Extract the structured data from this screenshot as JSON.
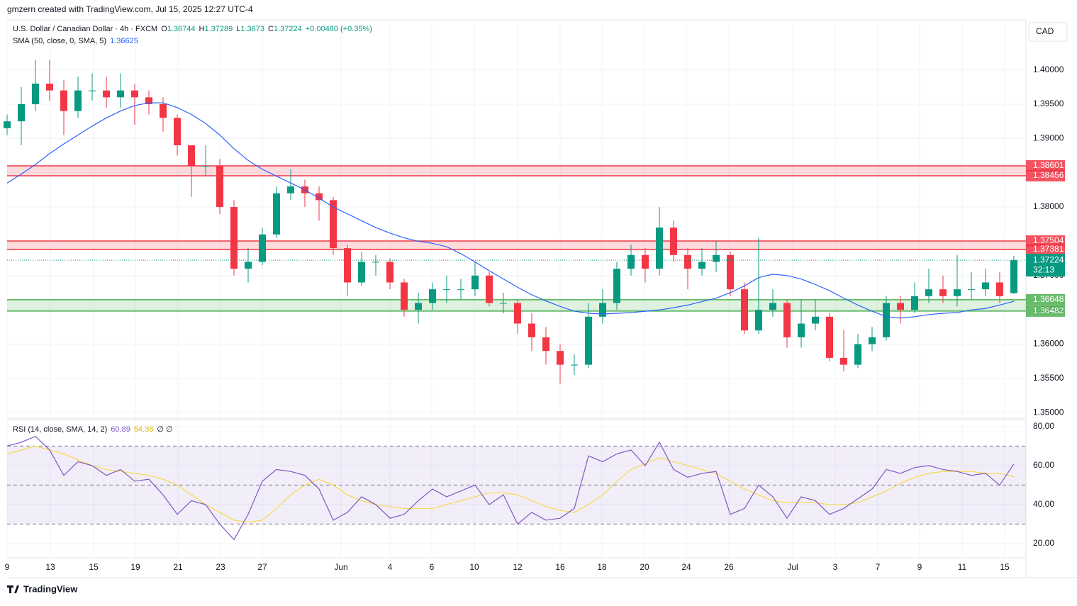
{
  "header": {
    "credit": "gmzern created with TradingView.com, Jul 15, 2025 12:27 UTC-4",
    "brand": "TradingView"
  },
  "chart_data": {
    "type": "candlestick",
    "symbol": "U.S. Dollar / Canadian Dollar · 4h · FXCM",
    "quote_labels": [
      "O",
      "H",
      "L",
      "C"
    ],
    "change": "+0.00480 (+0.35%)",
    "currency": "CAD",
    "up_color": "#089981",
    "down_color": "#f23645",
    "xlim": [
      0,
      71.85
    ],
    "xticks": [
      {
        "value": 0,
        "label": "9"
      },
      {
        "value": 3.05,
        "label": "13"
      },
      {
        "value": 6.1,
        "label": "15"
      },
      {
        "value": 9.05,
        "label": "19"
      },
      {
        "value": 12.05,
        "label": "21"
      },
      {
        "value": 15.05,
        "label": "23"
      },
      {
        "value": 18,
        "label": "27"
      },
      {
        "value": 23.55,
        "label": "Jun"
      },
      {
        "value": 27,
        "label": "4"
      },
      {
        "value": 29.95,
        "label": "6"
      },
      {
        "value": 32.95,
        "label": "10"
      },
      {
        "value": 36,
        "label": "12"
      },
      {
        "value": 39,
        "label": "16"
      },
      {
        "value": 41.95,
        "label": "18"
      },
      {
        "value": 44.95,
        "label": "20"
      },
      {
        "value": 47.9,
        "label": "24"
      },
      {
        "value": 50.9,
        "label": "26"
      },
      {
        "value": 55.4,
        "label": "Jul"
      },
      {
        "value": 58.4,
        "label": "3"
      },
      {
        "value": 61.4,
        "label": "7"
      },
      {
        "value": 64.35,
        "label": "9"
      },
      {
        "value": 67.35,
        "label": "11"
      },
      {
        "value": 70.35,
        "label": "15"
      }
    ],
    "ylim": [
      1.3492,
      1.4073
    ],
    "yticks": [
      {
        "value": 1.35,
        "label": "1.35000"
      },
      {
        "value": 1.355,
        "label": "1.35500"
      },
      {
        "value": 1.36,
        "label": "1.36000"
      },
      {
        "value": 1.365,
        "label": "1.36500"
      },
      {
        "value": 1.37,
        "label": "1.37000"
      },
      {
        "value": 1.375,
        "label": "1.37500"
      },
      {
        "value": 1.38,
        "label": "1.38000"
      },
      {
        "value": 1.385,
        "label": "1.38500"
      },
      {
        "value": 1.39,
        "label": "1.39000"
      },
      {
        "value": 1.395,
        "label": "1.39500"
      },
      {
        "value": 1.4,
        "label": "1.40000"
      }
    ],
    "candles": [
      [
        1.3915,
        1.3935,
        1.3905,
        1.3925
      ],
      [
        1.3925,
        1.3975,
        1.389,
        1.395
      ],
      [
        1.395,
        1.4015,
        1.394,
        1.398
      ],
      [
        1.398,
        1.4015,
        1.3955,
        1.397
      ],
      [
        1.397,
        1.3985,
        1.3905,
        1.394
      ],
      [
        1.394,
        1.399,
        1.393,
        1.397
      ],
      [
        1.397,
        1.3995,
        1.3955,
        1.397
      ],
      [
        1.397,
        1.399,
        1.3945,
        1.396
      ],
      [
        1.396,
        1.3995,
        1.3945,
        1.397
      ],
      [
        1.397,
        1.398,
        1.392,
        1.396
      ],
      [
        1.396,
        1.397,
        1.3935,
        1.395
      ],
      [
        1.395,
        1.396,
        1.391,
        1.393
      ],
      [
        1.393,
        1.3935,
        1.3875,
        1.389
      ],
      [
        1.389,
        1.389,
        1.3815,
        1.386
      ],
      [
        1.386,
        1.389,
        1.3845,
        1.386
      ],
      [
        1.386,
        1.387,
        1.379,
        1.38
      ],
      [
        1.38,
        1.381,
        1.37,
        1.371
      ],
      [
        1.371,
        1.374,
        1.369,
        1.372
      ],
      [
        1.372,
        1.377,
        1.3715,
        1.376
      ],
      [
        1.376,
        1.383,
        1.3755,
        1.382
      ],
      [
        1.382,
        1.3855,
        1.381,
        1.383
      ],
      [
        1.383,
        1.384,
        1.38,
        1.382
      ],
      [
        1.382,
        1.383,
        1.378,
        1.381
      ],
      [
        1.381,
        1.3815,
        1.373,
        1.374
      ],
      [
        1.374,
        1.3745,
        1.367,
        1.369
      ],
      [
        1.369,
        1.3735,
        1.3685,
        1.372
      ],
      [
        1.372,
        1.373,
        1.37,
        1.372
      ],
      [
        1.372,
        1.3725,
        1.368,
        1.369
      ],
      [
        1.369,
        1.3695,
        1.364,
        1.365
      ],
      [
        1.365,
        1.3675,
        1.363,
        1.366
      ],
      [
        1.366,
        1.369,
        1.365,
        1.368
      ],
      [
        1.368,
        1.37,
        1.366,
        1.368
      ],
      [
        1.368,
        1.3695,
        1.3665,
        1.368
      ],
      [
        1.368,
        1.372,
        1.367,
        1.37
      ],
      [
        1.37,
        1.3705,
        1.3655,
        1.366
      ],
      [
        1.366,
        1.3675,
        1.3645,
        1.366
      ],
      [
        1.366,
        1.3665,
        1.3615,
        1.363
      ],
      [
        1.363,
        1.3645,
        1.359,
        1.361
      ],
      [
        1.361,
        1.3625,
        1.357,
        1.359
      ],
      [
        1.359,
        1.36,
        1.3542,
        1.357
      ],
      [
        1.357,
        1.3585,
        1.3555,
        1.357
      ],
      [
        1.357,
        1.366,
        1.3565,
        1.364
      ],
      [
        1.364,
        1.368,
        1.363,
        1.366
      ],
      [
        1.366,
        1.372,
        1.365,
        1.371
      ],
      [
        1.371,
        1.3745,
        1.37,
        1.373
      ],
      [
        1.373,
        1.374,
        1.369,
        1.371
      ],
      [
        1.371,
        1.38,
        1.37,
        1.377
      ],
      [
        1.377,
        1.378,
        1.372,
        1.373
      ],
      [
        1.373,
        1.374,
        1.368,
        1.371
      ],
      [
        1.371,
        1.374,
        1.37,
        1.372
      ],
      [
        1.372,
        1.375,
        1.3705,
        1.373
      ],
      [
        1.373,
        1.3735,
        1.367,
        1.368
      ],
      [
        1.368,
        1.369,
        1.3615,
        1.362
      ],
      [
        1.362,
        1.3755,
        1.3615,
        1.365
      ],
      [
        1.365,
        1.368,
        1.364,
        1.366
      ],
      [
        1.366,
        1.3665,
        1.3595,
        1.361
      ],
      [
        1.361,
        1.3665,
        1.3595,
        1.363
      ],
      [
        1.363,
        1.3665,
        1.362,
        1.364
      ],
      [
        1.364,
        1.3645,
        1.3575,
        1.358
      ],
      [
        1.358,
        1.362,
        1.356,
        1.357
      ],
      [
        1.357,
        1.3615,
        1.3565,
        1.36
      ],
      [
        1.36,
        1.3625,
        1.359,
        1.361
      ],
      [
        1.361,
        1.367,
        1.3605,
        1.366
      ],
      [
        1.366,
        1.367,
        1.363,
        1.365
      ],
      [
        1.365,
        1.369,
        1.3645,
        1.367
      ],
      [
        1.367,
        1.371,
        1.366,
        1.368
      ],
      [
        1.368,
        1.37,
        1.366,
        1.367
      ],
      [
        1.367,
        1.373,
        1.3655,
        1.368
      ],
      [
        1.368,
        1.3705,
        1.3665,
        1.368
      ],
      [
        1.368,
        1.371,
        1.367,
        1.369
      ],
      [
        1.369,
        1.3705,
        1.366,
        1.367
      ],
      [
        1.36744,
        1.37289,
        1.3673,
        1.37224
      ]
    ],
    "countdown": "32:13",
    "sma": {
      "name": "SMA (50, close, 0, SMA, 5)",
      "color": "#2962ff",
      "values": [
        1.3835,
        1.3848,
        1.3862,
        1.3878,
        1.3892,
        1.3905,
        1.3918,
        1.393,
        1.394,
        1.3948,
        1.3952,
        1.3952,
        1.3945,
        1.3935,
        1.3922,
        1.3905,
        1.3885,
        1.3868,
        1.3855,
        1.3845,
        1.3835,
        1.3825,
        1.3813,
        1.38,
        1.379,
        1.378,
        1.377,
        1.3762,
        1.3755,
        1.375,
        1.3747,
        1.3742,
        1.3732,
        1.372,
        1.3707,
        1.3695,
        1.3683,
        1.3672,
        1.3663,
        1.3655,
        1.3648,
        1.3645,
        1.3644,
        1.3645,
        1.3646,
        1.3648,
        1.365,
        1.3653,
        1.3657,
        1.3662,
        1.3667,
        1.3675,
        1.3685,
        1.3697,
        1.3702,
        1.37,
        1.3695,
        1.3687,
        1.3678,
        1.3667,
        1.3657,
        1.3648,
        1.364,
        1.3638,
        1.364,
        1.3643,
        1.3645,
        1.3646,
        1.365,
        1.3652,
        1.3657,
        1.36625
      ]
    },
    "zones": [
      {
        "top": 1.38601,
        "bottom": 1.38456,
        "color": "#f23645"
      },
      {
        "top": 1.37504,
        "bottom": 1.37381,
        "color": "#f23645"
      },
      {
        "top": 1.36648,
        "bottom": 1.36482,
        "color": "#4caf50"
      }
    ],
    "rsi": {
      "name": "RSI (14, close, SMA, 14, 2)",
      "color": "#7e57c2",
      "ma_color": "#f7d94c",
      "extra": "∅ ∅",
      "ylim": [
        12.7,
        83.6
      ],
      "yticks": [
        {
          "value": 20,
          "label": "20.00"
        },
        {
          "value": 40,
          "label": "40.00"
        },
        {
          "value": 60,
          "label": "60.00"
        },
        {
          "value": 80,
          "label": "80.00"
        }
      ],
      "bands": [
        70,
        50,
        30
      ],
      "values": [
        70,
        72,
        75,
        68,
        55,
        62,
        60,
        55,
        58,
        52,
        53,
        45,
        35,
        42,
        40,
        30,
        22,
        35,
        52,
        58,
        57,
        55,
        48,
        32,
        36,
        44,
        40,
        33,
        35,
        42,
        48,
        44,
        47,
        50,
        40,
        45,
        30,
        36,
        32,
        33,
        38,
        65,
        62,
        66,
        68,
        60,
        72,
        58,
        54,
        56,
        57,
        35,
        38,
        50,
        44,
        33,
        44,
        42,
        35,
        38,
        43,
        48,
        58,
        56,
        59,
        60,
        58,
        57,
        55,
        56,
        50,
        60.89
      ],
      "ma_values": [
        66,
        68,
        70,
        68,
        66,
        63,
        60,
        58,
        57,
        56,
        55,
        53,
        50,
        45,
        40,
        36,
        32,
        31,
        32,
        38,
        45,
        50,
        53,
        50,
        45,
        42,
        40,
        39,
        38,
        38,
        38,
        40,
        42,
        44,
        46,
        46,
        45,
        42,
        39,
        37,
        36,
        40,
        45,
        52,
        58,
        61,
        64,
        62,
        60,
        58,
        56,
        52,
        48,
        45,
        42,
        41,
        41,
        41,
        40,
        40,
        41,
        44,
        47,
        51,
        54,
        56,
        57,
        57,
        57,
        56,
        56,
        54.38
      ]
    }
  }
}
